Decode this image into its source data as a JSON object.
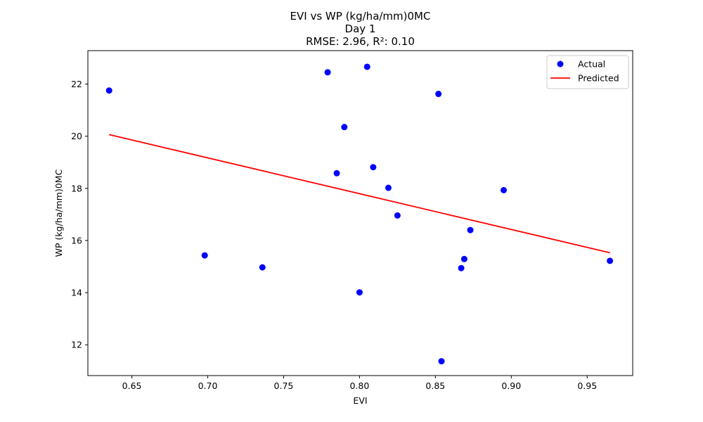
{
  "chart_data": {
    "type": "scatter",
    "title_lines": [
      "EVI vs WP (kg/ha/mm)0MC",
      "Day 1",
      "RMSE: 2.96, R²: 0.10"
    ],
    "xlabel": "EVI",
    "ylabel": "WP (kg/ha/mm)0MC",
    "xlim": [
      0.621,
      0.98
    ],
    "ylim": [
      10.82,
      23.28
    ],
    "x_ticks": [
      0.65,
      0.7,
      0.75,
      0.8,
      0.85,
      0.9,
      0.95
    ],
    "x_tick_labels": [
      "0.65",
      "0.70",
      "0.75",
      "0.80",
      "0.85",
      "0.90",
      "0.95"
    ],
    "y_ticks": [
      12,
      14,
      16,
      18,
      20,
      22
    ],
    "y_tick_labels": [
      "12",
      "14",
      "16",
      "18",
      "20",
      "22"
    ],
    "grid": false,
    "legend_position": "top-right",
    "series": [
      {
        "name": "Actual",
        "kind": "scatter",
        "color": "#0000ff",
        "points": [
          {
            "x": 0.635,
            "y": 21.75
          },
          {
            "x": 0.698,
            "y": 15.43
          },
          {
            "x": 0.736,
            "y": 14.97
          },
          {
            "x": 0.779,
            "y": 22.45
          },
          {
            "x": 0.785,
            "y": 18.58
          },
          {
            "x": 0.79,
            "y": 20.35
          },
          {
            "x": 0.8,
            "y": 14.01
          },
          {
            "x": 0.805,
            "y": 22.66
          },
          {
            "x": 0.809,
            "y": 18.81
          },
          {
            "x": 0.819,
            "y": 18.02
          },
          {
            "x": 0.825,
            "y": 16.96
          },
          {
            "x": 0.852,
            "y": 21.62
          },
          {
            "x": 0.854,
            "y": 11.37
          },
          {
            "x": 0.867,
            "y": 14.94
          },
          {
            "x": 0.869,
            "y": 15.29
          },
          {
            "x": 0.873,
            "y": 16.4
          },
          {
            "x": 0.895,
            "y": 17.93
          },
          {
            "x": 0.965,
            "y": 15.22
          }
        ]
      },
      {
        "name": "Predicted",
        "kind": "line",
        "color": "#ff0000",
        "points": [
          {
            "x": 0.635,
            "y": 20.06
          },
          {
            "x": 0.965,
            "y": 15.53
          }
        ]
      }
    ]
  }
}
